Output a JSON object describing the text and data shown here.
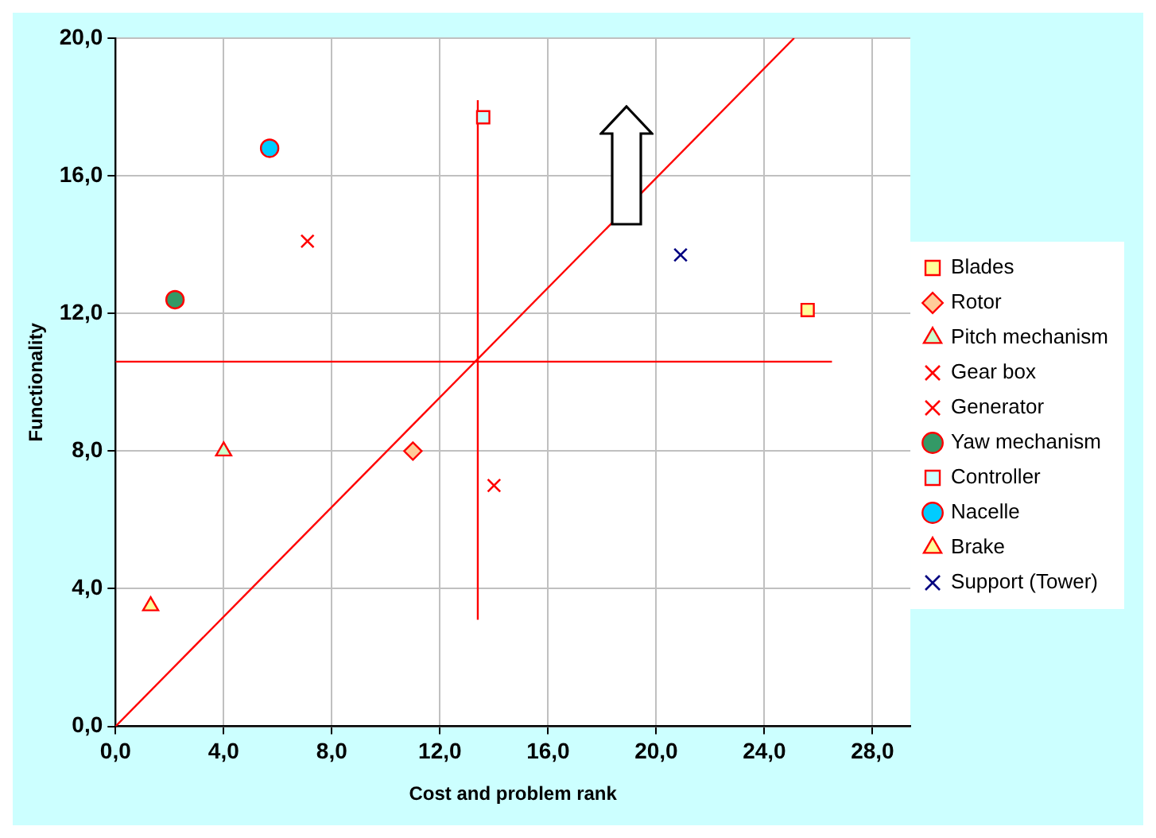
{
  "chart_data": {
    "type": "scatter",
    "xlabel": "Cost and problem rank",
    "ylabel": "Functionality",
    "xlim": [
      0,
      29.4
    ],
    "ylim": [
      0,
      20
    ],
    "xticks": [
      {
        "value": 0,
        "label": "0,0"
      },
      {
        "value": 4,
        "label": "4,0"
      },
      {
        "value": 8,
        "label": "8,0"
      },
      {
        "value": 12,
        "label": "12,0"
      },
      {
        "value": 16,
        "label": "16,0"
      },
      {
        "value": 20,
        "label": "20,0"
      },
      {
        "value": 24,
        "label": "24,0"
      },
      {
        "value": 28,
        "label": "28,0"
      }
    ],
    "yticks": [
      {
        "value": 0,
        "label": "0,0"
      },
      {
        "value": 4,
        "label": "4,0"
      },
      {
        "value": 8,
        "label": "8,0"
      },
      {
        "value": 12,
        "label": "12,0"
      },
      {
        "value": 16,
        "label": "16,0"
      },
      {
        "value": 20,
        "label": "20,0"
      }
    ],
    "grid": true,
    "legend": "right",
    "series": [
      {
        "name": "Blades",
        "color": "#ffff99",
        "marker": "square",
        "x": [
          25.6
        ],
        "values": [
          12.1
        ]
      },
      {
        "name": "Rotor",
        "color": "#ffcc99",
        "marker": "diamond",
        "x": [
          11.0
        ],
        "values": [
          8.0
        ]
      },
      {
        "name": "Pitch mechanism",
        "color": "#ccffcc",
        "marker": "triangle",
        "x": [
          4.0
        ],
        "values": [
          8.0
        ]
      },
      {
        "name": "Gear box",
        "color": "#ff0000",
        "marker": "cross",
        "x": [
          14.0
        ],
        "values": [
          7.0
        ]
      },
      {
        "name": "Generator",
        "color": "#ff0000",
        "marker": "cross",
        "x": [
          7.1
        ],
        "values": [
          14.1
        ]
      },
      {
        "name": "Yaw mechanism",
        "color": "#339966",
        "marker": "circle",
        "x": [
          2.2
        ],
        "values": [
          12.4
        ]
      },
      {
        "name": "Controller",
        "color": "#ccffff",
        "marker": "square",
        "x": [
          13.6
        ],
        "values": [
          17.7
        ]
      },
      {
        "name": "Nacelle",
        "color": "#00ccff",
        "marker": "circle",
        "x": [
          5.7
        ],
        "values": [
          16.8
        ]
      },
      {
        "name": "Brake",
        "color": "#ffff99",
        "marker": "triangle",
        "x": [
          1.3
        ],
        "values": [
          3.5
        ]
      },
      {
        "name": "Support (Tower)",
        "color": "#000080",
        "marker": "cross",
        "x": [
          20.9
        ],
        "values": [
          13.7
        ]
      },
      {
        "type": "line",
        "color": "#ff0000",
        "x": [
          0,
          26.5
        ],
        "values": [
          10.6,
          10.6
        ]
      },
      {
        "type": "line",
        "color": "#ff0000",
        "x": [
          13.4,
          13.4
        ],
        "values": [
          3.1,
          18.2
        ]
      },
      {
        "type": "line",
        "color": "#ff0000",
        "x": [
          0,
          25.1
        ],
        "values": [
          0,
          20
        ]
      }
    ]
  }
}
